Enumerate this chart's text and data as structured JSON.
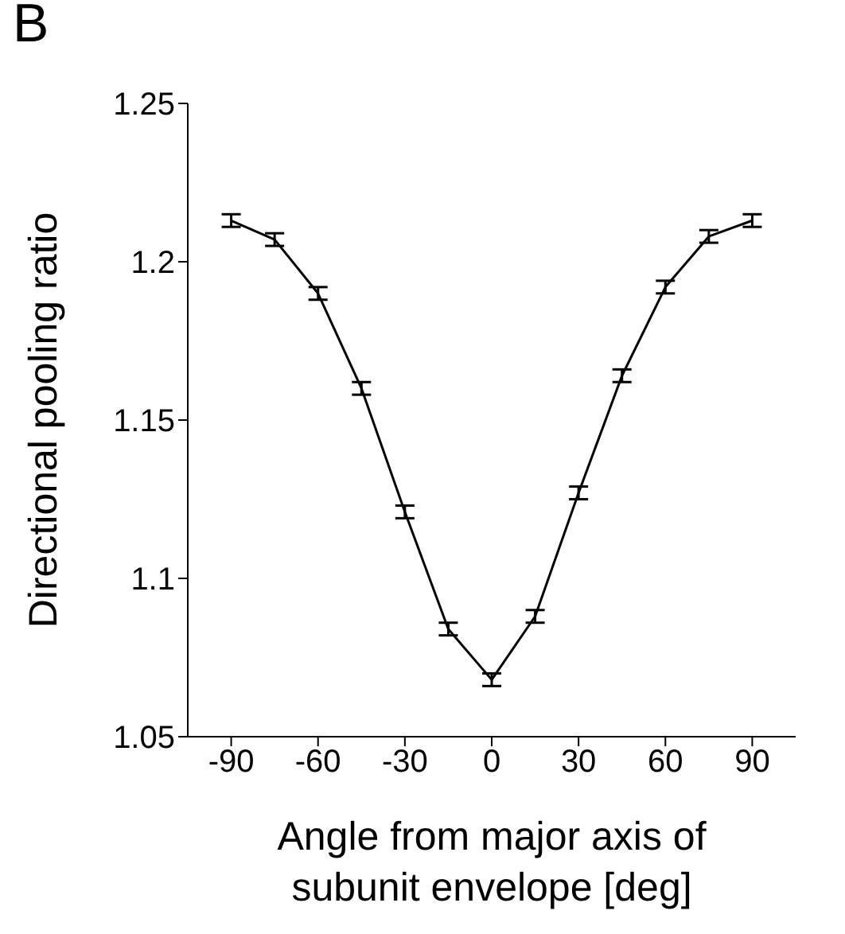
{
  "chart_data": {
    "type": "line",
    "annotations": [
      "B"
    ],
    "xlabel": "Angle from major axis of subunit envelope [deg]",
    "ylabel": "Directional pooling ratio",
    "x": [
      -90,
      -75,
      -60,
      -45,
      -30,
      -15,
      0,
      15,
      30,
      45,
      60,
      75,
      90
    ],
    "series": [
      {
        "color": "#000000",
        "values": [
          1.213,
          1.207,
          1.19,
          1.16,
          1.121,
          1.084,
          1.068,
          1.088,
          1.127,
          1.164,
          1.192,
          1.208,
          1.213
        ],
        "errors": [
          0.002,
          0.002,
          0.002,
          0.002,
          0.002,
          0.002,
          0.002,
          0.002,
          0.002,
          0.002,
          0.002,
          0.002,
          0.002
        ]
      }
    ],
    "xlim": [
      -105,
      105
    ],
    "xticks": [
      -90,
      -60,
      -30,
      0,
      30,
      60,
      90
    ],
    "ylim": [
      1.05,
      1.25
    ],
    "yticks": [
      1.05,
      1.1,
      1.15,
      1.2,
      1.25
    ],
    "grid": false,
    "legend": false,
    "marker": "none",
    "line_style": "solid"
  }
}
